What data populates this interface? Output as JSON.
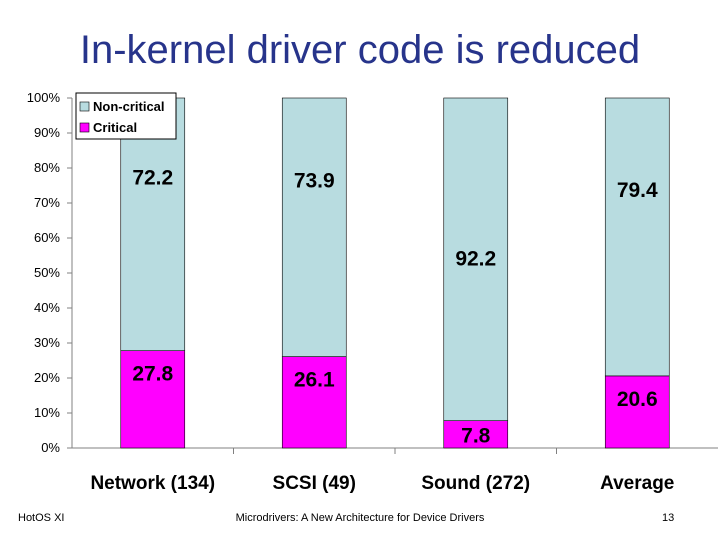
{
  "slide": {
    "title": "In-kernel driver code is reduced",
    "footer_left": "HotOS XI",
    "footer_center": "Microdrivers: A New Architecture for Device Drivers",
    "footer_right": "13"
  },
  "colors": {
    "noncritical": "#b8dce0",
    "critical": "#ff00ff",
    "title": "#27348b"
  },
  "chart_data": {
    "type": "bar",
    "stacked": true,
    "categories": [
      "Network (134)",
      "SCSI (49)",
      "Sound (272)",
      "Average"
    ],
    "series": [
      {
        "name": "Critical",
        "values": [
          27.8,
          26.1,
          7.8,
          20.6
        ],
        "labels": [
          "27.8",
          "26.1",
          "7.8",
          "20.6"
        ]
      },
      {
        "name": "Non-critical",
        "values": [
          72.2,
          73.9,
          92.2,
          79.4
        ],
        "labels": [
          "72.2",
          "73.9",
          "92.2",
          "79.4"
        ]
      }
    ],
    "y_ticks": [
      "0%",
      "10%",
      "20%",
      "30%",
      "40%",
      "50%",
      "60%",
      "70%",
      "80%",
      "90%",
      "100%"
    ],
    "ylim": [
      0,
      100
    ],
    "legend": [
      "Non-critical",
      "Critical"
    ],
    "legend_position": "top-left",
    "grid": false
  }
}
